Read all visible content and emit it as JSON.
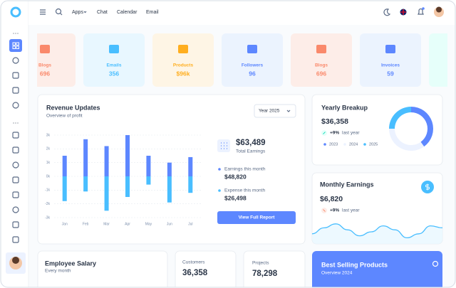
{
  "header": {
    "nav": [
      "Apps",
      "Chat",
      "Calendar",
      "Email"
    ]
  },
  "stat_cards": [
    {
      "label": "Blogs",
      "value": "696"
    },
    {
      "label": "Emails",
      "value": "356"
    },
    {
      "label": "Products",
      "value": "$96k"
    },
    {
      "label": "Followers",
      "value": "96"
    },
    {
      "label": "Blogs",
      "value": "696"
    },
    {
      "label": "Invoices",
      "value": "59"
    }
  ],
  "revenue": {
    "title": "Revenue Updates",
    "subtitle": "Overview of profit",
    "period": "Year 2025",
    "total": "$63,489",
    "total_label": "Total Earnings",
    "earnings": "$48,820",
    "expense": "$26,498",
    "button": "View Full Report",
    "chart_data": {
      "type": "bar",
      "categories": [
        "Jan",
        "Feb",
        "Mar",
        "Apr",
        "May",
        "Jun",
        "Jul"
      ],
      "series": [
        {
          "name": "Earnings this month",
          "color": "#5d87ff",
          "values": [
            1.5,
            2.7,
            2.2,
            3,
            1.5,
            1,
            1.4
          ]
        },
        {
          "name": "Expense this month",
          "color": "#49beff",
          "values": [
            -1.8,
            -1.1,
            -2.5,
            -1.5,
            -0.6,
            -1.9,
            -1.2
          ]
        }
      ],
      "ylim": [
        -3,
        3
      ],
      "yticks": [
        {
          "value": 3,
          "label": "3k"
        },
        {
          "value": 2,
          "label": "2k"
        },
        {
          "value": 1,
          "label": "1k"
        },
        {
          "value": 0,
          "label": "0k"
        },
        {
          "value": -1,
          "label": "-1k"
        },
        {
          "value": -2,
          "label": "-2k"
        },
        {
          "value": -3,
          "label": "-3k"
        }
      ],
      "grid": true
    }
  },
  "yearly": {
    "title": "Yearly Breakup",
    "value": "$36,358",
    "change": "+9%",
    "change_label": "last year",
    "chart_data": {
      "type": "pie",
      "categories": [
        "2023",
        "2024",
        "2025"
      ],
      "values": [
        40,
        35,
        25
      ],
      "colors": [
        "#5d87ff",
        "#ecf2ff",
        "#49beff"
      ]
    }
  },
  "monthly": {
    "title": "Monthly Earnings",
    "value": "$6,820",
    "change": "+9%",
    "change_label": "last year",
    "chart_data": {
      "type": "line",
      "values": [
        4,
        7,
        9,
        6,
        3,
        5,
        8,
        6,
        2,
        4,
        8,
        7
      ],
      "ylim": [
        0,
        10
      ],
      "color": "#49beff"
    }
  },
  "bottom": {
    "employee": {
      "title": "Employee Salary",
      "subtitle": "Every month"
    },
    "customers": {
      "label": "Customers",
      "value": "36,358"
    },
    "projects": {
      "label": "Projects",
      "value": "78,298"
    },
    "best_selling": {
      "title": "Best Selling Products",
      "subtitle": "Overview 2024"
    }
  }
}
